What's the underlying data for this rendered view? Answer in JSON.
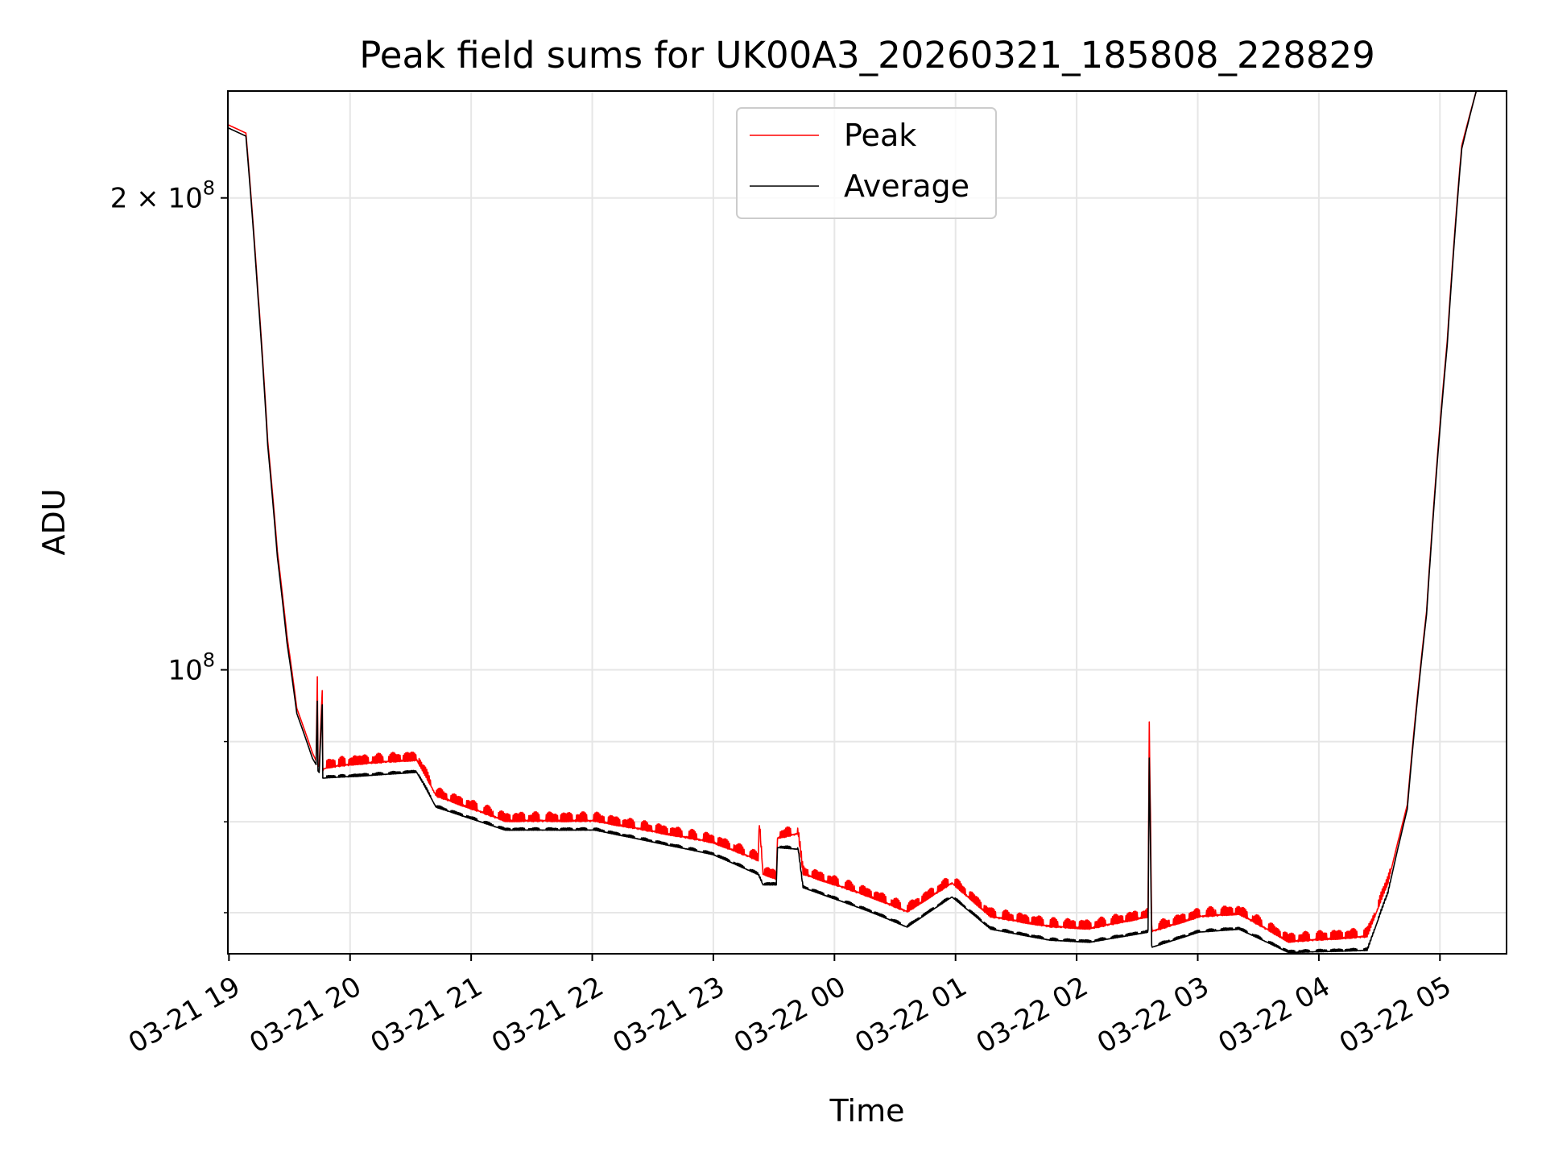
{
  "chart_data": {
    "type": "line",
    "title": "Peak field sums for UK00A3_20260321_185808_228829",
    "xlabel": "Time",
    "ylabel": "ADU",
    "yscale": "log",
    "ylim": [
      65900000.0,
      234000000.0
    ],
    "xlim_hours_from_0321_1900": [
      -0.009,
      10.55
    ],
    "grid": true,
    "legend": {
      "placement": "top-center",
      "entries": [
        "Peak",
        "Average"
      ]
    },
    "colors": {
      "Peak": "#ff0000",
      "Average": "#000000",
      "grid": "#e6e6e6"
    },
    "x_ticks": [
      {
        "h": 0,
        "label": "03-21 19"
      },
      {
        "h": 1,
        "label": "03-21 20"
      },
      {
        "h": 2,
        "label": "03-21 21"
      },
      {
        "h": 3,
        "label": "03-21 22"
      },
      {
        "h": 4,
        "label": "03-21 23"
      },
      {
        "h": 5,
        "label": "03-22 00"
      },
      {
        "h": 6,
        "label": "03-22 01"
      },
      {
        "h": 7,
        "label": "03-22 02"
      },
      {
        "h": 8,
        "label": "03-22 03"
      },
      {
        "h": 9,
        "label": "03-22 04"
      },
      {
        "h": 10,
        "label": "03-22 05"
      }
    ],
    "y_ticks_major": [
      {
        "v": 200000000.0,
        "base": "2 × 10",
        "exp": "8"
      },
      {
        "v": 100000000.0,
        "base": "10",
        "exp": "8"
      }
    ],
    "y_ticks_minor": [
      90000000.0,
      80000000.0,
      70000000.0
    ],
    "x_unit": "hours since 03-21 19:00",
    "y_unit": "1e8 ADU",
    "series": [
      {
        "name": "Average",
        "points": [
          [
            -0.025,
            2.22
          ],
          [
            0.14,
            2.19
          ],
          [
            0.24,
            1.73
          ],
          [
            0.32,
            1.39
          ],
          [
            0.4,
            1.18
          ],
          [
            0.48,
            1.04
          ],
          [
            0.56,
            0.938
          ],
          [
            0.69,
            0.878
          ],
          [
            0.72,
            0.87
          ],
          [
            0.73,
            0.955
          ],
          [
            0.735,
            0.862
          ],
          [
            0.745,
            0.86
          ],
          [
            0.77,
            0.95
          ],
          [
            0.775,
            0.853
          ],
          [
            0.785,
            0.853
          ],
          [
            1.06,
            0.855
          ],
          [
            1.55,
            0.86
          ],
          [
            1.71,
            0.817
          ],
          [
            2.28,
            0.79
          ],
          [
            3.02,
            0.79
          ],
          [
            4.0,
            0.762
          ],
          [
            4.37,
            0.74
          ],
          [
            4.41,
            0.729
          ],
          [
            4.52,
            0.729
          ],
          [
            4.53,
            0.77
          ],
          [
            4.7,
            0.768
          ],
          [
            4.74,
            0.726
          ],
          [
            5.31,
            0.7
          ],
          [
            5.6,
            0.685
          ],
          [
            5.97,
            0.716
          ],
          [
            6.29,
            0.683
          ],
          [
            6.78,
            0.672
          ],
          [
            7.11,
            0.67
          ],
          [
            7.59,
            0.68
          ],
          [
            7.6,
            0.875
          ],
          [
            7.62,
            0.665
          ],
          [
            8.01,
            0.68
          ],
          [
            8.34,
            0.683
          ],
          [
            8.75,
            0.66
          ],
          [
            9.4,
            0.662
          ],
          [
            9.57,
            0.72
          ],
          [
            9.73,
            0.815
          ],
          [
            9.89,
            1.085
          ],
          [
            10.06,
            1.61
          ],
          [
            10.18,
            2.15
          ],
          [
            10.3,
            2.34
          ],
          [
            10.55,
            2.34
          ]
        ]
      },
      {
        "name": "Peak",
        "points": [
          [
            -0.025,
            2.23
          ],
          [
            0.14,
            2.2
          ],
          [
            0.24,
            1.74
          ],
          [
            0.32,
            1.4
          ],
          [
            0.4,
            1.19
          ],
          [
            0.48,
            1.05
          ],
          [
            0.56,
            0.945
          ],
          [
            0.69,
            0.885
          ],
          [
            0.72,
            0.875
          ],
          [
            0.73,
            0.99
          ],
          [
            0.735,
            0.868
          ],
          [
            0.745,
            0.868
          ],
          [
            0.77,
            0.97
          ],
          [
            0.775,
            0.862
          ],
          [
            0.785,
            0.865
          ],
          [
            1.06,
            0.87
          ],
          [
            1.55,
            0.875
          ],
          [
            1.71,
            0.83
          ],
          [
            2.28,
            0.8
          ],
          [
            3.02,
            0.8
          ],
          [
            4.0,
            0.775
          ],
          [
            4.37,
            0.755
          ],
          [
            4.38,
            0.795
          ],
          [
            4.41,
            0.74
          ],
          [
            4.52,
            0.735
          ],
          [
            4.53,
            0.78
          ],
          [
            4.7,
            0.785
          ],
          [
            4.74,
            0.74
          ],
          [
            5.31,
            0.715
          ],
          [
            5.6,
            0.7
          ],
          [
            5.97,
            0.73
          ],
          [
            6.29,
            0.695
          ],
          [
            6.78,
            0.685
          ],
          [
            7.11,
            0.683
          ],
          [
            7.59,
            0.695
          ],
          [
            7.6,
            0.913
          ],
          [
            7.62,
            0.68
          ],
          [
            8.01,
            0.695
          ],
          [
            8.34,
            0.698
          ],
          [
            8.75,
            0.67
          ],
          [
            9.4,
            0.675
          ],
          [
            9.57,
            0.73
          ],
          [
            9.73,
            0.82
          ],
          [
            9.89,
            1.09
          ],
          [
            10.06,
            1.62
          ],
          [
            10.18,
            2.16
          ],
          [
            10.3,
            2.34
          ],
          [
            10.55,
            2.34
          ]
        ]
      }
    ]
  }
}
